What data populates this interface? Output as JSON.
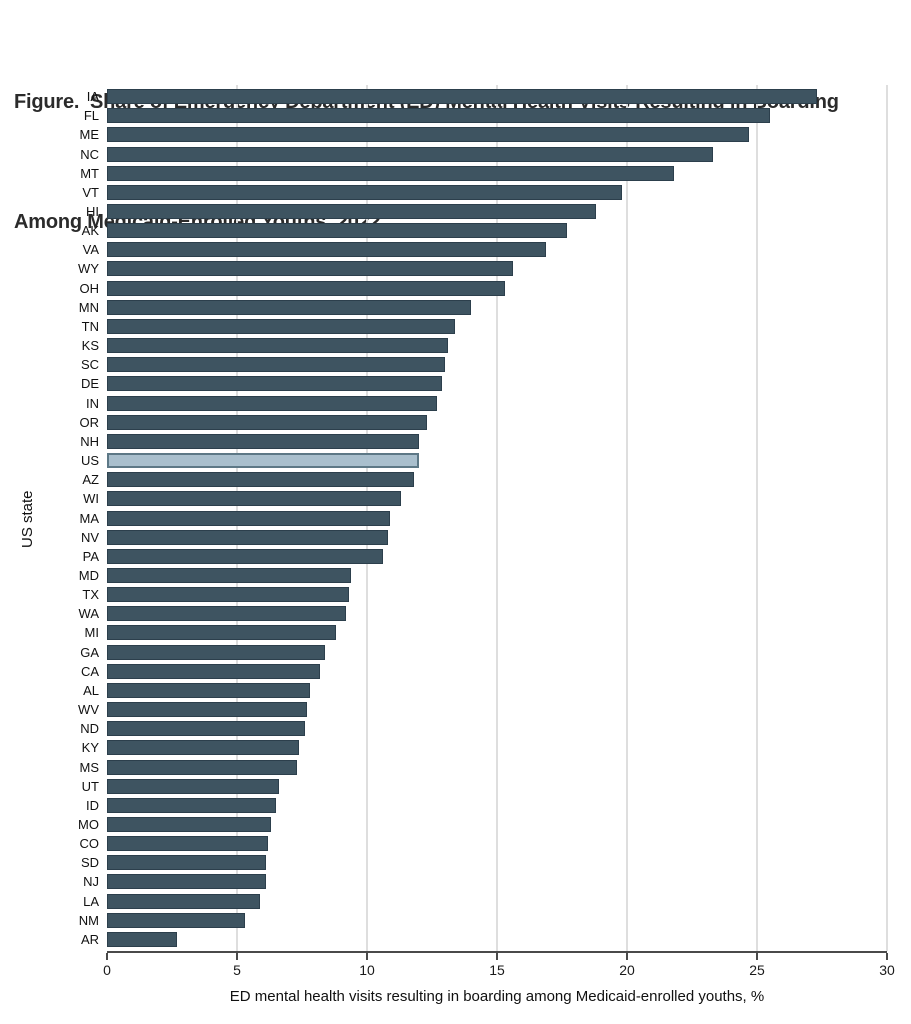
{
  "figure": {
    "title_line1": "Figure.  Share of Emergency Department (ED) Mental Health Visits Resulting in Boarding",
    "title_line2": "Among Medicaid-Enrolled Youths, 2022"
  },
  "chart_data": {
    "type": "bar",
    "orientation": "horizontal",
    "title": "Figure. Share of Emergency Department (ED) Mental Health Visits Resulting in Boarding Among Medicaid-Enrolled Youths, 2022",
    "xlabel": "ED mental health visits resulting in boarding among Medicaid-enrolled youths, %",
    "ylabel": "US state",
    "xlim": [
      0,
      30
    ],
    "x_ticks": [
      0,
      5,
      10,
      15,
      20,
      25,
      30
    ],
    "grid": "vertical-light",
    "legend": "none",
    "highlight_category": "US",
    "categories": [
      "IA",
      "FL",
      "ME",
      "NC",
      "MT",
      "VT",
      "HI",
      "AK",
      "VA",
      "WY",
      "OH",
      "MN",
      "TN",
      "KS",
      "SC",
      "DE",
      "IN",
      "OR",
      "NH",
      "US",
      "AZ",
      "WI",
      "MA",
      "NV",
      "PA",
      "MD",
      "TX",
      "WA",
      "MI",
      "GA",
      "CA",
      "AL",
      "WV",
      "ND",
      "KY",
      "MS",
      "UT",
      "ID",
      "MO",
      "CO",
      "SD",
      "NJ",
      "LA",
      "NM",
      "AR"
    ],
    "values": [
      27.3,
      25.5,
      24.7,
      23.3,
      21.8,
      19.8,
      18.8,
      17.7,
      16.9,
      15.6,
      15.3,
      14.0,
      13.4,
      13.1,
      13.0,
      12.9,
      12.7,
      12.3,
      12.0,
      12.0,
      11.8,
      11.3,
      10.9,
      10.8,
      10.6,
      9.4,
      9.3,
      9.2,
      8.8,
      8.4,
      8.2,
      7.8,
      7.7,
      7.6,
      7.4,
      7.3,
      6.6,
      6.5,
      6.3,
      6.2,
      6.1,
      6.1,
      5.9,
      5.3,
      2.7
    ],
    "colors": {
      "bar_fill": "#3e5461",
      "bar_border": "#2c3f4c",
      "highlight_fill": "#a9bfcd",
      "highlight_border": "#5d7886",
      "gridline": "#dedede",
      "axis": "#4a4a4a",
      "text": "#111111",
      "title_text": "#2b2b2b"
    }
  }
}
